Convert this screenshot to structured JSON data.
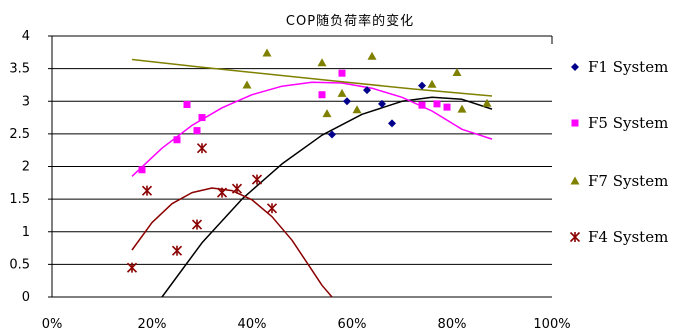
{
  "chart_data": {
    "type": "scatter",
    "title": "COP随负荷率的变化",
    "xlabel": "",
    "ylabel": "",
    "xlim": [
      0,
      100
    ],
    "ylim": [
      0,
      4
    ],
    "x_ticks": [
      "0%",
      "20%",
      "40%",
      "60%",
      "80%",
      "100%"
    ],
    "y_ticks": [
      "0",
      "0.5",
      "1",
      "1.5",
      "2",
      "2.5",
      "3",
      "3.5",
      "4"
    ],
    "grid": "horizontal",
    "legend_position": "right",
    "series": [
      {
        "name": "F1 System",
        "color": "#00008b",
        "marker": "diamond",
        "trendline_color": "#000000",
        "points": [
          [
            56,
            2.49
          ],
          [
            59,
            3.0
          ],
          [
            63,
            3.17
          ],
          [
            66,
            2.96
          ],
          [
            68,
            2.66
          ],
          [
            74,
            3.24
          ]
        ],
        "trendline": [
          [
            22,
            0.0
          ],
          [
            30,
            0.83
          ],
          [
            38,
            1.5
          ],
          [
            46,
            2.04
          ],
          [
            54,
            2.48
          ],
          [
            62,
            2.8
          ],
          [
            70,
            3.0
          ],
          [
            76,
            3.06
          ],
          [
            82,
            3.03
          ],
          [
            88,
            2.88
          ]
        ]
      },
      {
        "name": "F5 System",
        "color": "#ff00ff",
        "marker": "square",
        "trendline_color": "#ff00ff",
        "points": [
          [
            18,
            1.95
          ],
          [
            25,
            2.41
          ],
          [
            27,
            2.95
          ],
          [
            29,
            2.55
          ],
          [
            30,
            2.75
          ],
          [
            54,
            3.1
          ],
          [
            58,
            3.43
          ],
          [
            74,
            2.94
          ],
          [
            77,
            2.96
          ],
          [
            79,
            2.91
          ]
        ],
        "trendline": [
          [
            16,
            1.85
          ],
          [
            22,
            2.28
          ],
          [
            28,
            2.63
          ],
          [
            34,
            2.9
          ],
          [
            40,
            3.1
          ],
          [
            46,
            3.23
          ],
          [
            52,
            3.29
          ],
          [
            58,
            3.28
          ],
          [
            64,
            3.2
          ],
          [
            70,
            3.06
          ],
          [
            76,
            2.85
          ],
          [
            82,
            2.57
          ],
          [
            88,
            2.42
          ]
        ]
      },
      {
        "name": "F7 System",
        "color": "#808000",
        "marker": "triangle",
        "trendline_color": "#808000",
        "points": [
          [
            39,
            3.25
          ],
          [
            43,
            3.74
          ],
          [
            54,
            3.59
          ],
          [
            55,
            2.81
          ],
          [
            58,
            3.12
          ],
          [
            61,
            2.87
          ],
          [
            64,
            3.69
          ],
          [
            76,
            3.26
          ],
          [
            81,
            3.44
          ],
          [
            82,
            2.88
          ],
          [
            87,
            2.97
          ]
        ],
        "trendline": [
          [
            16,
            3.64
          ],
          [
            30,
            3.52
          ],
          [
            44,
            3.41
          ],
          [
            58,
            3.3
          ],
          [
            72,
            3.19
          ],
          [
            88,
            3.08
          ]
        ]
      },
      {
        "name": "F4 System",
        "color": "#8b0000",
        "marker": "star",
        "trendline_color": "#8b0000",
        "points": [
          [
            16,
            0.45
          ],
          [
            19,
            1.63
          ],
          [
            25,
            0.71
          ],
          [
            29,
            1.11
          ],
          [
            30,
            2.28
          ],
          [
            34,
            1.6
          ],
          [
            37,
            1.66
          ],
          [
            41,
            1.8
          ],
          [
            44,
            1.36
          ]
        ],
        "trendline": [
          [
            16,
            0.72
          ],
          [
            20,
            1.14
          ],
          [
            24,
            1.43
          ],
          [
            28,
            1.6
          ],
          [
            32,
            1.67
          ],
          [
            36,
            1.63
          ],
          [
            40,
            1.49
          ],
          [
            44,
            1.23
          ],
          [
            48,
            0.87
          ],
          [
            52,
            0.41
          ],
          [
            54,
            0.18
          ],
          [
            56,
            0.0
          ]
        ]
      }
    ]
  }
}
